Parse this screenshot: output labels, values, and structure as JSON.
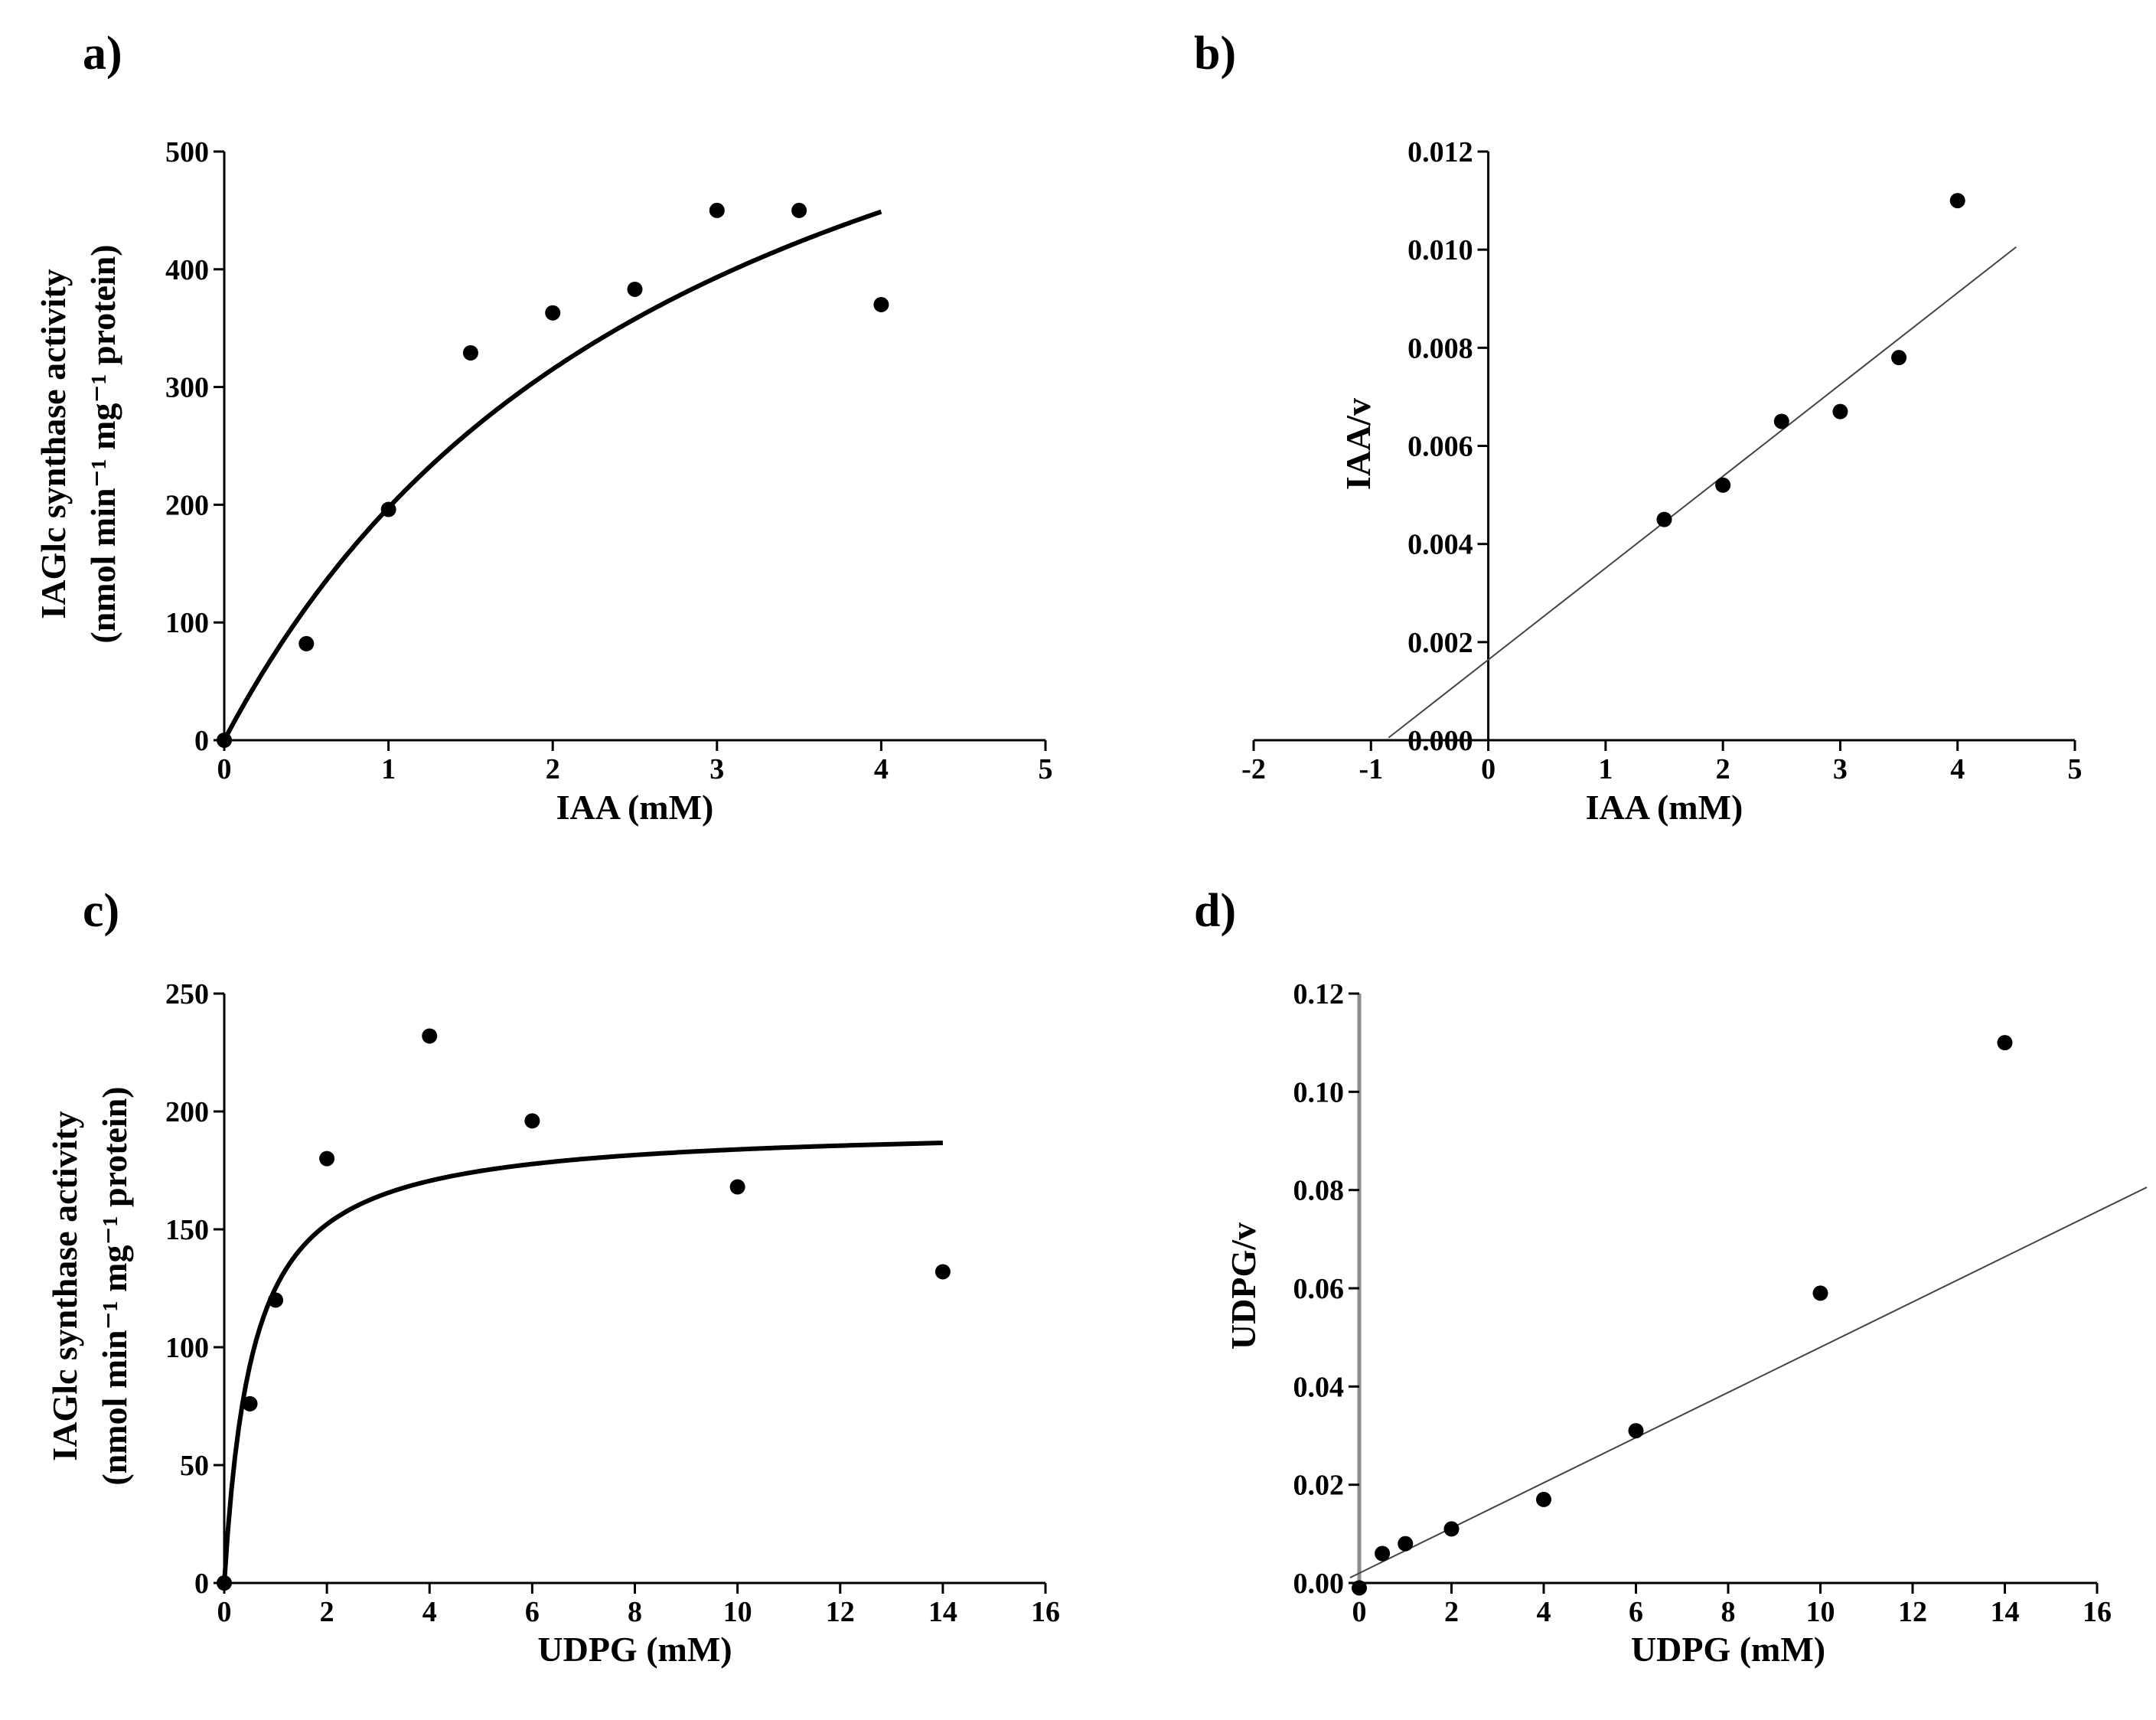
{
  "chart_data": [
    {
      "panel": "a)",
      "type": "scatter",
      "fit": "michaelis-menten",
      "fit_params": {
        "vmax": 780,
        "km": 2.95
      },
      "xlabel": "IAA (mM)",
      "ylabel_line1": "IAGlc synthase activity",
      "ylabel_line2": "(nmol min⁻¹ mg⁻¹ protein)",
      "xlim": [
        0,
        5
      ],
      "ylim": [
        0,
        500
      ],
      "xticks": [
        "0",
        "1",
        "2",
        "3",
        "4",
        "5"
      ],
      "yticks": [
        "0",
        "100",
        "200",
        "300",
        "400",
        "500"
      ],
      "x": [
        0,
        0.5,
        1,
        1.5,
        2,
        2.5,
        3,
        3.5,
        4
      ],
      "y": [
        0,
        82,
        196,
        329,
        363,
        383,
        450,
        450,
        370
      ]
    },
    {
      "panel": "b)",
      "type": "scatter",
      "fit": "linear",
      "fit_params": {
        "slope": 0.00187,
        "intercept": 0.00164,
        "x_from": -0.85,
        "x_to": 4.5
      },
      "xlabel": "IAA (mM)",
      "ylabel": "IAA/v",
      "xlim": [
        -2,
        5
      ],
      "ylim": [
        0,
        0.012
      ],
      "xticks": [
        "-2",
        "-1",
        "0",
        "1",
        "2",
        "3",
        "4",
        "5"
      ],
      "yticks": [
        "0.000",
        "0.002",
        "0.004",
        "0.006",
        "0.008",
        "0.010",
        "0.012"
      ],
      "x": [
        1.5,
        2,
        2.5,
        3,
        3.5,
        4
      ],
      "y": [
        0.0045,
        0.0052,
        0.0065,
        0.0067,
        0.0078,
        0.011
      ]
    },
    {
      "panel": "c)",
      "type": "scatter",
      "fit": "michaelis-menten",
      "fit_params": {
        "vmax": 194,
        "km": 0.55
      },
      "xlabel": "UDPG (mM)",
      "ylabel_line1": "IAGlc synthase activity",
      "ylabel_line2": "(nmol min⁻¹ mg⁻¹ protein)",
      "xlim": [
        0,
        16
      ],
      "ylim": [
        0,
        250
      ],
      "xticks": [
        "0",
        "2",
        "4",
        "6",
        "8",
        "10",
        "12",
        "14",
        "16"
      ],
      "yticks": [
        "0",
        "50",
        "100",
        "150",
        "200",
        "250"
      ],
      "x": [
        0,
        0.5,
        1,
        2,
        4,
        6,
        10,
        14
      ],
      "y": [
        0,
        76,
        120,
        180,
        232,
        196,
        168,
        132
      ]
    },
    {
      "panel": "d)",
      "type": "scatter",
      "fit": "linear",
      "fit_params": {
        "slope": 0.0046,
        "intercept": 0.002,
        "x_from": -0.2,
        "x_to": 16
      },
      "xlabel": "UDPG (mM)",
      "ylabel": "UDPG/v",
      "xlim": [
        0,
        16
      ],
      "ylim": [
        0,
        0.12
      ],
      "xticks": [
        "0",
        "2",
        "4",
        "6",
        "8",
        "10",
        "12",
        "14",
        "16"
      ],
      "yticks": [
        "0.00",
        "0.02",
        "0.04",
        "0.06",
        "0.08",
        "0.10",
        "0.12"
      ],
      "x": [
        0,
        0.5,
        1,
        2,
        4,
        6,
        10,
        14
      ],
      "y": [
        -0.001,
        0.006,
        0.008,
        0.011,
        0.017,
        0.031,
        0.059,
        0.11
      ]
    }
  ]
}
